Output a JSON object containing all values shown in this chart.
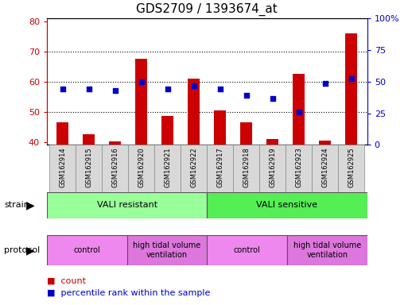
{
  "title": "GDS2709 / 1393674_at",
  "samples": [
    "GSM162914",
    "GSM162915",
    "GSM162916",
    "GSM162920",
    "GSM162921",
    "GSM162922",
    "GSM162917",
    "GSM162918",
    "GSM162919",
    "GSM162923",
    "GSM162924",
    "GSM162925"
  ],
  "counts": [
    46.5,
    42.5,
    40.2,
    67.5,
    48.5,
    61.0,
    50.5,
    46.5,
    41.0,
    62.5,
    40.5,
    76.0
  ],
  "percentiles": [
    57.5,
    57.5,
    57.0,
    60.0,
    57.5,
    58.5,
    57.5,
    55.5,
    54.5,
    50.0,
    59.5,
    61.0
  ],
  "ylim_left": [
    39,
    81
  ],
  "ylim_right": [
    0,
    100
  ],
  "yticks_left": [
    40,
    50,
    60,
    70,
    80
  ],
  "yticks_right": [
    0,
    25,
    50,
    75,
    100
  ],
  "ytick_labels_right": [
    "0",
    "25",
    "50",
    "75",
    "100%"
  ],
  "bar_color": "#cc0000",
  "dot_color": "#0000cc",
  "strain_groups": [
    {
      "label": "VALI resistant",
      "start": 0,
      "end": 6,
      "color": "#99ff99"
    },
    {
      "label": "VALI sensitive",
      "start": 6,
      "end": 12,
      "color": "#55ee55"
    }
  ],
  "protocol_groups": [
    {
      "label": "control",
      "start": 0,
      "end": 3,
      "color": "#ee88ee"
    },
    {
      "label": "high tidal volume\nventilation",
      "start": 3,
      "end": 6,
      "color": "#dd77dd"
    },
    {
      "label": "control",
      "start": 6,
      "end": 9,
      "color": "#ee88ee"
    },
    {
      "label": "high tidal volume\nventilation",
      "start": 9,
      "end": 12,
      "color": "#dd77dd"
    }
  ],
  "legend_count_color": "#cc0000",
  "legend_dot_color": "#0000cc",
  "bg_color": "#ffffff",
  "axis_color_left": "#cc0000",
  "axis_color_right": "#0000cc",
  "title_fontsize": 11,
  "tick_fontsize": 8,
  "sample_label_fontsize": 6,
  "annotation_fontsize": 8,
  "legend_fontsize": 8
}
